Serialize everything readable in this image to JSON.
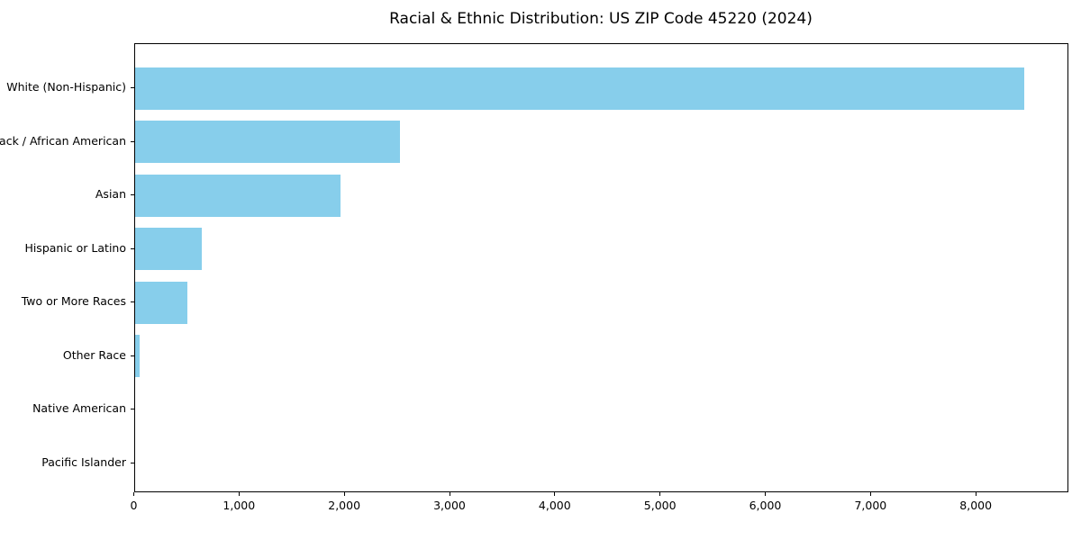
{
  "chart_data": {
    "type": "bar",
    "orientation": "horizontal",
    "title": "Racial & Ethnic Distribution: US ZIP Code 45220 (2024)",
    "categories": [
      "White (Non-Hispanic)",
      "Black / African American",
      "Asian",
      "Hispanic or Latino",
      "Two or More Races",
      "Other Race",
      "Native American",
      "Pacific Islander"
    ],
    "values": [
      8450,
      2520,
      1960,
      640,
      500,
      50,
      0,
      0
    ],
    "xlabel": "",
    "ylabel": "",
    "xlim": [
      0,
      8880
    ],
    "x_ticks": [
      0,
      1000,
      2000,
      3000,
      4000,
      5000,
      6000,
      7000,
      8000
    ],
    "x_tick_labels": [
      "0",
      "1,000",
      "2,000",
      "3,000",
      "4,000",
      "5,000",
      "6,000",
      "7,000",
      "8,000"
    ],
    "bar_color": "#87CEEB",
    "text_color": "#000000",
    "grid": false,
    "legend": null
  }
}
